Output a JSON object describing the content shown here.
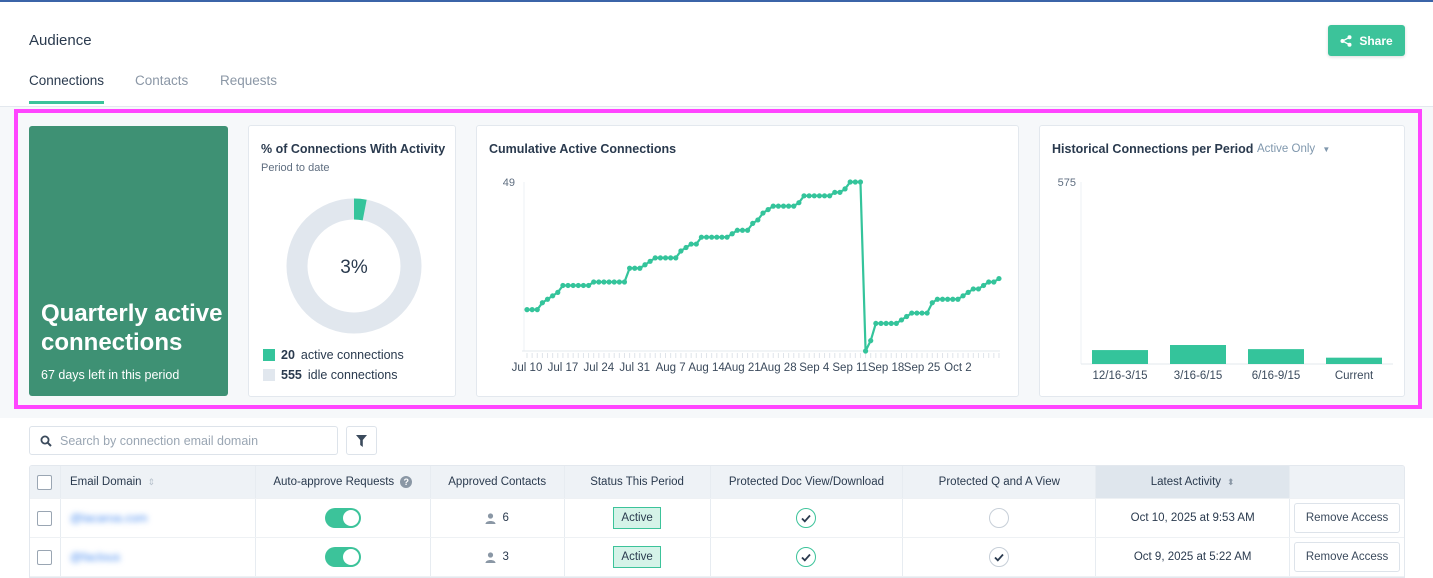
{
  "header": {
    "title": "Audience",
    "share_label": "Share"
  },
  "tabs": [
    {
      "label": "Connections",
      "active": true
    },
    {
      "label": "Contacts"
    },
    {
      "label": "Requests"
    }
  ],
  "quarterly": {
    "title": "Quarterly active connections",
    "subtitle": "67 days left in this period"
  },
  "activity": {
    "title": "% of Connections With Activity",
    "subtitle": "Period to date",
    "percent_label": "3%",
    "percent": 3,
    "legend": [
      {
        "count": "20",
        "label": "active connections",
        "color": "#34c49b"
      },
      {
        "count": "555",
        "label": "idle connections",
        "color": "#e1e7ee"
      }
    ]
  },
  "historical_filter": "Active Only",
  "chart_data": [
    {
      "type": "line",
      "title": "Cumulative Active Connections",
      "ylim": [
        0,
        49
      ],
      "ytick_label": "49",
      "xtick_labels": [
        "Jul 10",
        "Jul 17",
        "Jul 24",
        "Jul 31",
        "Aug 7",
        "Aug 14",
        "Aug 21",
        "Aug 28",
        "Sep 4",
        "Sep 11",
        "Sep 18",
        "Sep 25",
        "Oct 2"
      ],
      "x_start": "Jul 10",
      "x_step_days": 1,
      "values": [
        12,
        12,
        12,
        14,
        15,
        16,
        17,
        19,
        19,
        19,
        19,
        19,
        19,
        20,
        20,
        20,
        20,
        20,
        20,
        20,
        24,
        24,
        24,
        25,
        26,
        27,
        27,
        27,
        27,
        27,
        29,
        30,
        31,
        31,
        33,
        33,
        33,
        33,
        33,
        33,
        34,
        35,
        35,
        35,
        37,
        38,
        40,
        41,
        42,
        42,
        42,
        42,
        42,
        43,
        45,
        45,
        45,
        45,
        45,
        45,
        46,
        46,
        47,
        49,
        49,
        49,
        0,
        3,
        8,
        8,
        8,
        8,
        8,
        9,
        10,
        11,
        11,
        11,
        11,
        14,
        15,
        15,
        15,
        15,
        15,
        16,
        17,
        18,
        18,
        19,
        20,
        20,
        21
      ]
    },
    {
      "type": "bar",
      "title": "Historical Connections per Period",
      "ylim": [
        0,
        575
      ],
      "ytick_label": "575",
      "categories": [
        "12/16-3/15",
        "3/16-6/15",
        "6/16-9/15",
        "Current"
      ],
      "values": [
        44,
        60,
        47,
        20
      ]
    }
  ],
  "search": {
    "placeholder": "Search by connection email domain",
    "value": ""
  },
  "table": {
    "columns": [
      "Email Domain",
      "Auto-approve Requests",
      "Approved Contacts",
      "Status This Period",
      "Protected Doc View/Download",
      "Protected Q and A View",
      "Latest Activity",
      ""
    ],
    "rows": [
      {
        "domain": "@lacaroa.com",
        "auto_approve": true,
        "contacts": "6",
        "status": "Active",
        "doc": true,
        "qa": false,
        "latest": "Oct 10, 2025 at 9:53 AM",
        "action": "Remove Access"
      },
      {
        "domain": "@faclous",
        "auto_approve": true,
        "contacts": "3",
        "status": "Active",
        "doc": true,
        "qa": true,
        "latest": "Oct 9, 2025 at 5:22 AM",
        "action": "Remove Access"
      }
    ]
  }
}
